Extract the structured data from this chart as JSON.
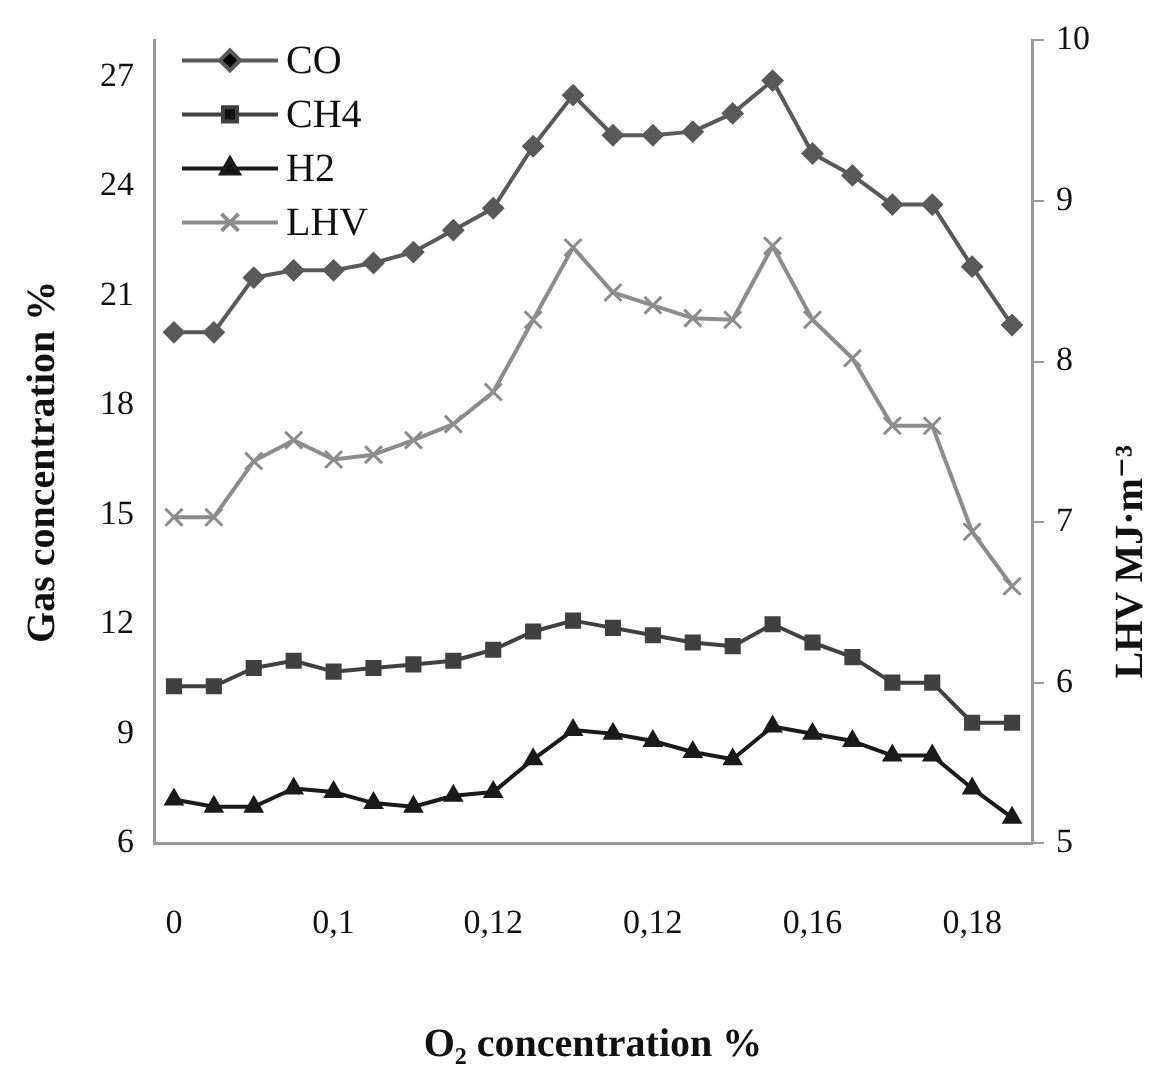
{
  "chart_data": {
    "type": "line",
    "xlabel": "O₂ concentration %",
    "ylabel": "Gas concentration %",
    "y2label": "LHV MJ·m⁻³",
    "categories": [
      "0",
      null,
      null,
      null,
      "0,1",
      null,
      null,
      null,
      "0,12",
      null,
      null,
      null,
      "0,12",
      null,
      null,
      null,
      "0,16",
      null,
      null,
      null,
      "0,18",
      null
    ],
    "series": [
      {
        "name": "CO",
        "color": "#595959",
        "marker": "diamond",
        "values": [
          20.0,
          20.0,
          21.5,
          21.7,
          21.7,
          21.9,
          22.2,
          22.8,
          23.4,
          25.1,
          26.5,
          25.4,
          25.4,
          25.5,
          26.0,
          26.9,
          24.9,
          24.3,
          23.5,
          23.5,
          21.8,
          20.2
        ]
      },
      {
        "name": "CH4",
        "color": "#404040",
        "marker": "square",
        "values": [
          10.3,
          10.3,
          10.8,
          11.0,
          10.7,
          10.8,
          10.9,
          11.0,
          11.3,
          11.8,
          12.1,
          11.9,
          11.7,
          11.5,
          11.4,
          12.0,
          11.5,
          11.1,
          10.4,
          10.4,
          9.3,
          9.3
        ]
      },
      {
        "name": "H2",
        "color": "#1a1a1a",
        "marker": "triangle",
        "values": [
          7.2,
          7.0,
          7.0,
          7.5,
          7.4,
          7.1,
          7.0,
          7.3,
          7.4,
          8.3,
          9.1,
          9.0,
          8.8,
          8.5,
          8.3,
          9.2,
          9.0,
          8.8,
          8.4,
          8.4,
          7.5,
          6.7
        ]
      },
      {
        "name": "LHV",
        "color": "#8c8c8c",
        "marker": "cross",
        "axis": "y2",
        "values": [
          7.03,
          7.03,
          7.38,
          7.51,
          7.39,
          7.42,
          7.51,
          7.61,
          7.81,
          8.26,
          8.71,
          8.43,
          8.35,
          8.27,
          8.26,
          8.72,
          8.26,
          8.02,
          7.6,
          7.6,
          6.94,
          6.6
        ]
      }
    ],
    "ylim": [
      6,
      28
    ],
    "yticks": [
      6,
      9,
      12,
      15,
      18,
      21,
      24,
      27
    ],
    "y2lim": [
      5,
      10
    ],
    "y2ticks": [
      5,
      6,
      7,
      8,
      9,
      10
    ],
    "grid": false,
    "legend": "top left",
    "line_style": "solid"
  }
}
